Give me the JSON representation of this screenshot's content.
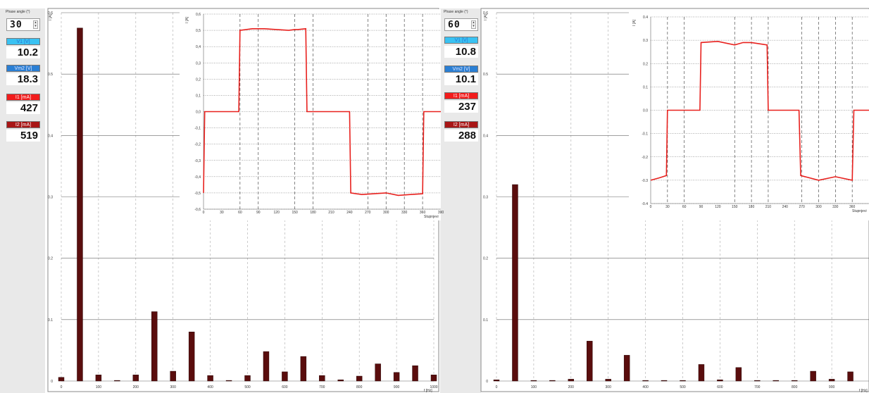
{
  "left": {
    "controls": {
      "phase_label": "Phase angle (°)",
      "phase_value": "30",
      "v1": {
        "label": "V1 [V]",
        "value": "10.2",
        "color": "#3ac2f2"
      },
      "vm2": {
        "label": "Vm2 [V]",
        "value": "18.3",
        "color": "#2a7fd4"
      },
      "i1": {
        "label": "I1 [mA]",
        "value": "427",
        "color": "#f21c1c"
      },
      "i2": {
        "label": "I2 [mA]",
        "value": "519",
        "color": "#a81616"
      }
    }
  },
  "right": {
    "controls": {
      "phase_label": "Phase angle (°)",
      "phase_value": "60",
      "v1": {
        "label": "V1 [V]",
        "value": "10.8",
        "color": "#3ac2f2"
      },
      "vm2": {
        "label": "Vm2 [V]",
        "value": "10.1",
        "color": "#2a7fd4"
      },
      "i1": {
        "label": "I1 [mA]",
        "value": "237",
        "color": "#f21c1c"
      },
      "i2": {
        "label": "I2 [mA]",
        "value": "288",
        "color": "#a81616"
      }
    }
  },
  "chart_data": [
    {
      "id": "spectrum-left",
      "type": "bar",
      "ylabel": "I [A]",
      "xlabel": "f [Hz]",
      "xlim": [
        0,
        1000
      ],
      "ylim": [
        0,
        0.6
      ],
      "xticks": [
        0,
        100,
        200,
        300,
        400,
        500,
        600,
        700,
        800,
        900,
        1000
      ],
      "yticks": [
        0,
        0.1,
        0.2,
        0.3,
        0.4,
        0.5,
        0.6
      ],
      "x": [
        0,
        50,
        100,
        150,
        200,
        250,
        300,
        350,
        400,
        450,
        500,
        550,
        600,
        650,
        700,
        750,
        800,
        850,
        900,
        950,
        1000
      ],
      "values": [
        0.006,
        0.575,
        0.01,
        0.001,
        0.01,
        0.113,
        0.016,
        0.08,
        0.009,
        0.001,
        0.009,
        0.048,
        0.015,
        0.04,
        0.009,
        0.002,
        0.008,
        0.028,
        0.014,
        0.025,
        0.01
      ],
      "color": "#5a0d0d"
    },
    {
      "id": "wave-left",
      "type": "line",
      "ylabel": "I [A]",
      "xlabel": "Stupnjevi",
      "xlim": [
        0,
        390
      ],
      "ylim": [
        -0.6,
        0.6
      ],
      "xticks": [
        0,
        30,
        60,
        90,
        120,
        150,
        180,
        210,
        240,
        270,
        300,
        330,
        360,
        390
      ],
      "yticks": [
        -0.6,
        -0.5,
        -0.4,
        -0.3,
        -0.2,
        -0.1,
        0,
        0.1,
        0.2,
        0.3,
        0.4,
        0.5,
        0.6
      ],
      "ytick_labels": [
        "-0,6",
        "-0,5",
        "-0,4",
        "-0,3",
        "-0,2",
        "-0,1",
        "0,0",
        "0,1",
        "0,2",
        "0,3",
        "0,4",
        "0,5",
        "0,6"
      ],
      "vlines": [
        60,
        90,
        150,
        180,
        270,
        300,
        330,
        360
      ],
      "x": [
        0,
        2,
        58,
        60,
        80,
        100,
        120,
        140,
        150,
        155,
        168,
        170,
        240,
        242,
        260,
        280,
        300,
        320,
        340,
        360,
        362,
        390
      ],
      "y": [
        -0.5,
        0,
        0,
        0.5,
        0.51,
        0.51,
        0.505,
        0.5,
        0.505,
        0.505,
        0.51,
        0,
        0,
        -0.5,
        -0.51,
        -0.505,
        -0.5,
        -0.515,
        -0.51,
        -0.505,
        0,
        0
      ],
      "color": "#e8211e"
    },
    {
      "id": "spectrum-right",
      "type": "bar",
      "ylabel": "I [A]",
      "xlabel": "f [Hz]",
      "xlim": [
        0,
        1000
      ],
      "ylim": [
        0,
        0.6
      ],
      "xticks": [
        0,
        100,
        200,
        300,
        400,
        500,
        600,
        700,
        800,
        900
      ],
      "yticks": [
        0,
        0.1,
        0.2,
        0.3,
        0.4,
        0.5,
        0.6
      ],
      "x": [
        0,
        50,
        100,
        150,
        200,
        250,
        300,
        350,
        400,
        450,
        500,
        550,
        600,
        650,
        700,
        750,
        800,
        850,
        900,
        950
      ],
      "values": [
        0.002,
        0.32,
        0.001,
        0.001,
        0.003,
        0.065,
        0.003,
        0.042,
        0.001,
        0.001,
        0.001,
        0.027,
        0.002,
        0.022,
        0.001,
        0.001,
        0.001,
        0.016,
        0.003,
        0.015
      ],
      "color": "#5a0d0d"
    },
    {
      "id": "wave-right",
      "type": "line",
      "ylabel": "I [A]",
      "xlabel": "Stupnjevi",
      "xlim": [
        0,
        390
      ],
      "ylim": [
        -0.4,
        0.4
      ],
      "xticks": [
        0,
        30,
        60,
        90,
        120,
        150,
        180,
        210,
        240,
        270,
        300,
        330,
        360,
        390
      ],
      "yticks": [
        -0.4,
        -0.3,
        -0.2,
        -0.1,
        0,
        0.1,
        0.2,
        0.3,
        0.4
      ],
      "ytick_labels": [
        "-0.4",
        "-0.3",
        "-0.2",
        "-0.1",
        "0.0",
        "0.1",
        "0.2",
        "0.3",
        "0.4"
      ],
      "vlines": [
        30,
        60,
        150,
        180,
        210,
        270,
        300,
        330,
        360
      ],
      "x": [
        0,
        15,
        28,
        30,
        88,
        90,
        120,
        150,
        165,
        180,
        208,
        210,
        240,
        265,
        268,
        300,
        330,
        360,
        363,
        390
      ],
      "y": [
        -0.3,
        -0.29,
        -0.28,
        0,
        0,
        0.29,
        0.295,
        0.28,
        0.29,
        0.29,
        0.28,
        0,
        0,
        0,
        -0.28,
        -0.3,
        -0.285,
        -0.3,
        0,
        0
      ],
      "color": "#e8211e"
    }
  ]
}
